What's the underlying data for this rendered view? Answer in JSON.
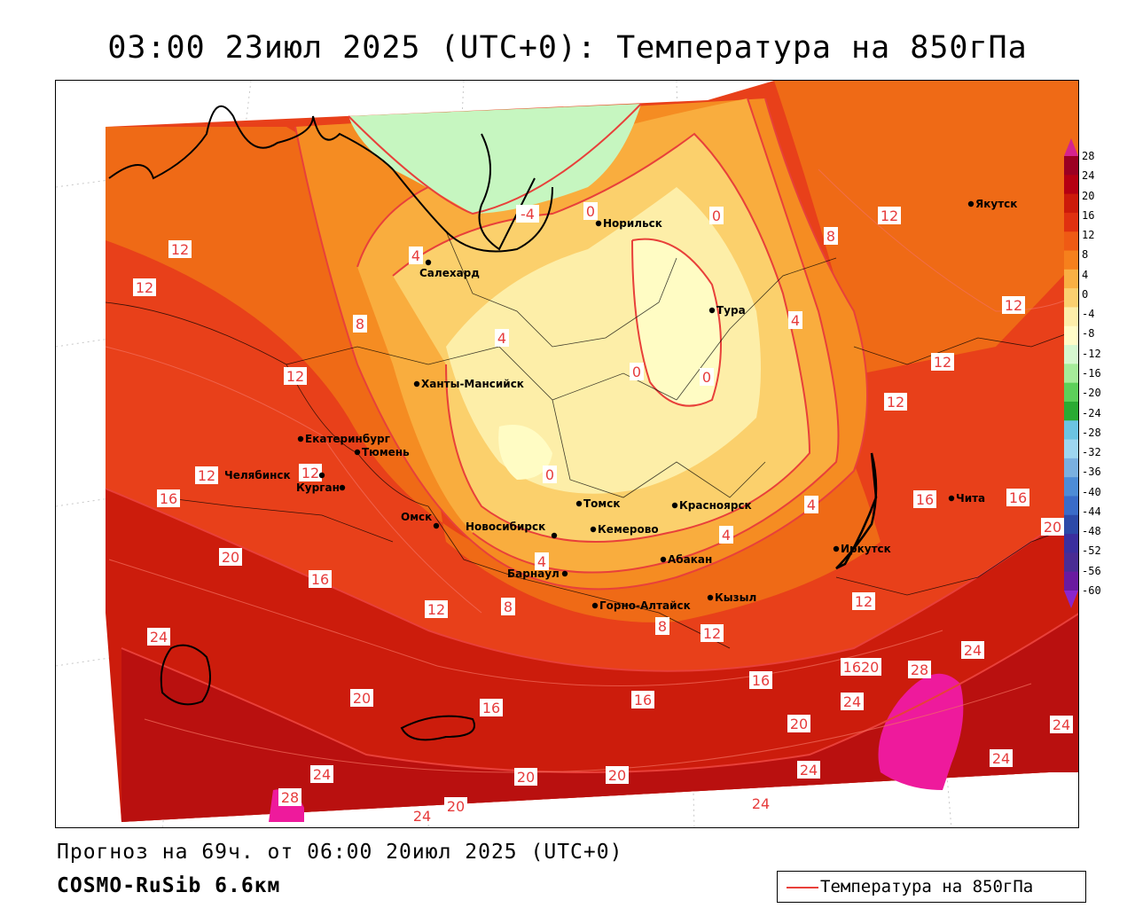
{
  "title": "03:00 23июл 2025 (UTC+0): Температура на 850гПа",
  "forecast_line": "Прогноз на 69ч. от 06:00 20июл 2025 (UTC+0)",
  "model_line": "COSMO-RuSib 6.6км",
  "legend": {
    "label": "Температура на 850гПа",
    "color": "#e8403a"
  },
  "colorbar": {
    "ticks": [
      "28",
      "24",
      "20",
      "16",
      "12",
      "8",
      "4",
      "0",
      "-4",
      "-8",
      "-12",
      "-16",
      "-20",
      "-24",
      "-28",
      "-32",
      "-36",
      "-40",
      "-44",
      "-48",
      "-52",
      "-56",
      "-60"
    ],
    "colors": [
      "#9b0022",
      "#b50012",
      "#cc1a0a",
      "#e03010",
      "#ef5a14",
      "#f6801c",
      "#f9b044",
      "#fbd070",
      "#fdeeaa",
      "#fffcc8",
      "#d6f8d0",
      "#a6ec9a",
      "#5dd05a",
      "#2aaa33",
      "#6cc4e2",
      "#9ed6f0",
      "#7ab0e0",
      "#4d8cd6",
      "#3a6cc8",
      "#2c4aa8",
      "#3b2f9e",
      "#4a2c94",
      "#6a1aa0"
    ]
  },
  "cities": [
    {
      "name": "Норильск"
    },
    {
      "name": "Якутск"
    },
    {
      "name": "Салехард"
    },
    {
      "name": "Тура"
    },
    {
      "name": "Ханты-Мансийск"
    },
    {
      "name": "Екатеринбург"
    },
    {
      "name": "Тюмень"
    },
    {
      "name": "Челябинск"
    },
    {
      "name": "Курган"
    },
    {
      "name": "Омск"
    },
    {
      "name": "Новосибирск"
    },
    {
      "name": "Томск"
    },
    {
      "name": "Кемерово"
    },
    {
      "name": "Красноярск"
    },
    {
      "name": "Абакан"
    },
    {
      "name": "Барнаул"
    },
    {
      "name": "Горно-Алтайск"
    },
    {
      "name": "Кызыл"
    },
    {
      "name": "Иркутск"
    },
    {
      "name": "Чита"
    }
  ],
  "isotherm_labels": [
    "-4",
    "0",
    "0",
    "0",
    "0",
    "0",
    "4",
    "4",
    "4",
    "4",
    "4",
    "4",
    "8",
    "8",
    "8",
    "8",
    "12",
    "12",
    "12",
    "12",
    "12",
    "12",
    "12",
    "12",
    "12",
    "12",
    "12",
    "12",
    "16",
    "16",
    "16",
    "16",
    "16",
    "16",
    "16",
    "20",
    "20",
    "20",
    "20",
    "20",
    "20",
    "20",
    "24",
    "24",
    "24",
    "24",
    "24",
    "24",
    "24",
    "24",
    "24",
    "28",
    "28",
    "1620"
  ]
}
